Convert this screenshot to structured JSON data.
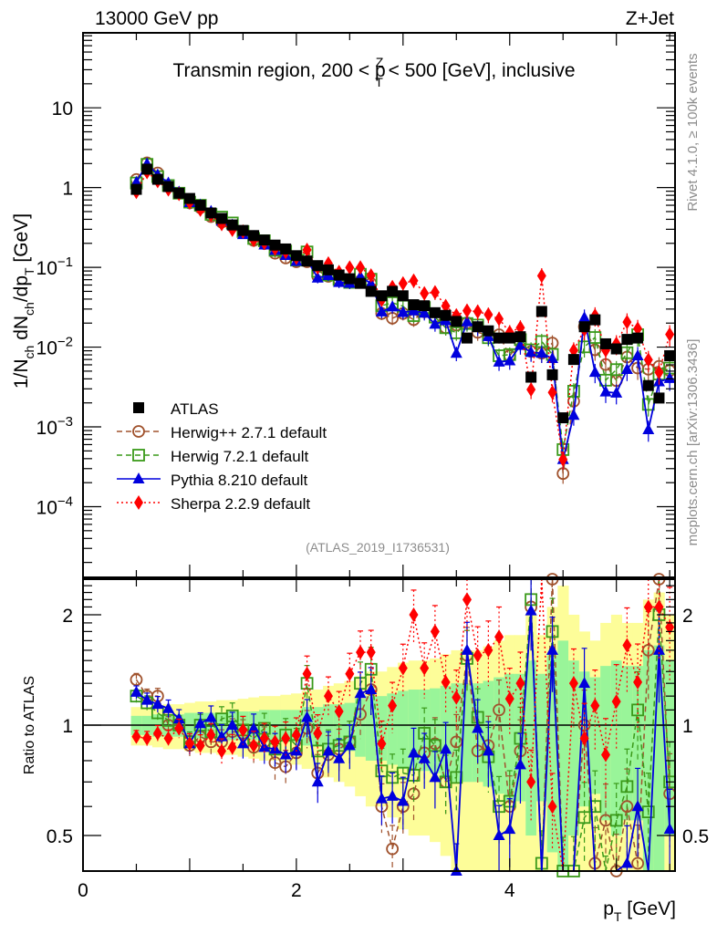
{
  "chart_data": [
    {
      "type": "scatter",
      "panel": "main",
      "header_left": "13000 GeV pp",
      "header_right": "Z+Jet",
      "title": "Transmin region, 200 < p_T^Z < 500 [GeV], inclusive",
      "title_parts": {
        "pre": "Transmin region, 200 < p",
        "sup": "Z",
        "sub": "T",
        "post": " < 500 [GeV], inclusive"
      },
      "ylabel": "1/N_ch dN_ch/dp_T [GeV]",
      "ylabel_parts": {
        "a": "1/N",
        "a_sub": "ch",
        "b": " dN",
        "b_sub": "ch",
        "c": "/dp",
        "c_sub": "T",
        "d": " [GeV]"
      },
      "yscale": "log",
      "ylim": [
        1.3e-05,
        87
      ],
      "xlim": [
        0,
        5.55
      ],
      "yticks": [
        {
          "value": 10,
          "label": "10"
        },
        {
          "value": 1,
          "label": "1"
        },
        {
          "value": 0.1,
          "label": "10",
          "exp": "−1"
        },
        {
          "value": 0.01,
          "label": "10",
          "exp": "−2"
        },
        {
          "value": 0.001,
          "label": "10",
          "exp": "−3"
        },
        {
          "value": 0.0001,
          "label": "10",
          "exp": "−4"
        }
      ],
      "legend_position": "lower-left",
      "x": [
        0.5,
        0.6,
        0.7,
        0.8,
        0.9,
        1.0,
        1.1,
        1.2,
        1.3,
        1.4,
        1.5,
        1.6,
        1.7,
        1.8,
        1.9,
        2.0,
        2.1,
        2.2,
        2.3,
        2.4,
        2.5,
        2.6,
        2.7,
        2.8,
        2.9,
        3.0,
        3.1,
        3.2,
        3.3,
        3.4,
        3.5,
        3.6,
        3.7,
        3.8,
        3.9,
        4.0,
        4.1,
        4.2,
        4.3,
        4.4,
        4.5,
        4.6,
        4.7,
        4.8,
        4.9,
        5.0,
        5.1,
        5.2,
        5.3,
        5.4,
        5.5
      ],
      "series": [
        {
          "name": "ATLAS",
          "label": "ATLAS",
          "color": "#000000",
          "marker": "square-filled",
          "line": "none",
          "values": [
            0.95,
            1.7,
            1.27,
            1.03,
            0.85,
            0.73,
            0.6,
            0.48,
            0.41,
            0.34,
            0.29,
            0.25,
            0.22,
            0.19,
            0.17,
            0.14,
            0.12,
            0.105,
            0.093,
            0.08,
            0.072,
            0.063,
            0.05,
            0.044,
            0.05,
            0.044,
            0.034,
            0.033,
            0.027,
            0.025,
            0.021,
            0.013,
            0.018,
            0.016,
            0.013,
            0.013,
            0.0135,
            0.0042,
            0.028,
            0.0045,
            0.0013,
            0.007,
            0.018,
            0.022,
            0.011,
            0.0095,
            0.0125,
            0.013,
            0.0033,
            0.0023,
            0.0078
          ]
        },
        {
          "name": "Herwig++ 2.7.1 default",
          "label": "Herwig++ 2.7.1 default",
          "color": "#a0522d",
          "marker": "circle-open",
          "line": "dashed",
          "ratio": [
            1.33,
            1.2,
            1.2,
            1.0,
            1.0,
            0.88,
            0.93,
            0.9,
            0.9,
            0.96,
            0.95,
            0.87,
            0.9,
            0.79,
            0.77,
            0.84,
            0.98,
            0.74,
            0.83,
            0.86,
            0.9,
            1.07,
            1.25,
            0.6,
            0.46,
            0.6,
            0.65,
            0.84,
            0.89,
            0.7,
            0.9,
            1.55,
            0.85,
            0.88,
            1.1,
            0.6,
            0.85,
            2.1,
            0.3,
            2.5,
            0.2,
            0.3,
            1.0,
            0.42,
            0.55,
            0.4,
            0.6,
            0.42,
            1.6,
            2.5,
            0.65
          ]
        },
        {
          "name": "Herwig 7.2.1 default",
          "label": "Herwig 7.2.1 default",
          "color": "#3a9a1a",
          "marker": "square-open",
          "line": "dashed",
          "ratio": [
            1.2,
            1.15,
            1.08,
            1.03,
            1.0,
            0.9,
            1.0,
            0.96,
            1.04,
            1.06,
            0.97,
            0.92,
            0.98,
            0.86,
            0.94,
            0.88,
            1.3,
            0.85,
            0.86,
            0.88,
            0.9,
            1.3,
            1.42,
            0.75,
            0.72,
            0.74,
            0.73,
            0.95,
            0.88,
            0.7,
            0.72,
            1.52,
            1.05,
            0.82,
            0.6,
            0.62,
            0.92,
            2.2,
            0.42,
            1.8,
            0.4,
            0.4,
            0.56,
            0.6,
            0.35,
            0.55,
            0.68,
            1.1,
            0.58,
            2.0,
            0.7
          ]
        },
        {
          "name": "Pythia 8.210 default",
          "label": "Pythia 8.210 default",
          "color": "#0000dd",
          "marker": "triangle-filled",
          "line": "solid",
          "ratio": [
            1.23,
            1.17,
            1.14,
            1.11,
            1.04,
            0.89,
            1.01,
            1.05,
            0.93,
            1.0,
            0.89,
            0.98,
            0.87,
            0.86,
            0.83,
            0.85,
            1.05,
            0.7,
            0.85,
            0.81,
            0.88,
            1.22,
            1.25,
            0.63,
            0.64,
            0.62,
            0.84,
            0.81,
            0.72,
            0.86,
            0.4,
            1.6,
            0.98,
            0.85,
            0.5,
            0.52,
            0.78,
            2.05,
            0.3,
            1.6,
            0.3,
            0.2,
            1.3,
            0.22,
            0.25,
            0.28,
            0.42,
            0.6,
            0.28,
            1.6,
            0.52
          ]
        },
        {
          "name": "Sherpa 2.2.9 default",
          "label": "Sherpa 2.2.9 default",
          "color": "#ff0000",
          "marker": "diamond-filled",
          "line": "dotted",
          "ratio": [
            0.93,
            0.92,
            0.95,
            0.92,
            0.98,
            0.89,
            0.88,
            0.94,
            0.85,
            0.87,
            0.97,
            0.88,
            0.92,
            0.9,
            0.92,
            0.94,
            1.38,
            0.95,
            1.2,
            1.09,
            1.38,
            1.58,
            1.58,
            0.89,
            1.13,
            1.43,
            2.0,
            1.43,
            1.8,
            1.31,
            1.19,
            2.2,
            1.55,
            1.6,
            1.74,
            1.18,
            1.3,
            0.7,
            2.8,
            0.6,
            0.3,
            1.3,
            0.92,
            1.13,
            0.83,
            1.16,
            1.65,
            1.31,
            2.1,
            2.1,
            1.85
          ]
        }
      ]
    },
    {
      "type": "scatter",
      "panel": "ratio",
      "ylabel": "Ratio to ATLAS",
      "xlabel": "p_T [GeV]",
      "xlabel_parts": {
        "a": "p",
        "sub": "T",
        "b": " [GeV]"
      },
      "yscale": "log",
      "ylim": [
        0.4,
        2.5
      ],
      "xlim": [
        0,
        5.55
      ],
      "xticks": [
        {
          "value": 0,
          "label": "0"
        },
        {
          "value": 2,
          "label": "2"
        },
        {
          "value": 4,
          "label": "4"
        }
      ],
      "yticks": [
        {
          "value": 0.5,
          "label": "0.5"
        },
        {
          "value": 1,
          "label": "1"
        },
        {
          "value": 2,
          "label": "2"
        }
      ],
      "reference_line": 1,
      "band_1sigma_color": "#99f599",
      "band_2sigma_color": "#fdfd99",
      "band_1sigma_rel": [
        0.06,
        0.06,
        0.07,
        0.07,
        0.07,
        0.08,
        0.08,
        0.08,
        0.08,
        0.09,
        0.09,
        0.09,
        0.1,
        0.1,
        0.1,
        0.1,
        0.12,
        0.12,
        0.14,
        0.14,
        0.15,
        0.18,
        0.2,
        0.2,
        0.22,
        0.24,
        0.25,
        0.25,
        0.26,
        0.28,
        0.3,
        0.3,
        0.3,
        0.32,
        0.35,
        0.38,
        0.38,
        0.5,
        0.38,
        0.55,
        0.7,
        0.5,
        0.4,
        0.35,
        0.45,
        0.5,
        0.45,
        0.45,
        0.6,
        0.65,
        0.5
      ],
      "band_2sigma_rel": [
        0.12,
        0.12,
        0.13,
        0.14,
        0.14,
        0.15,
        0.16,
        0.16,
        0.17,
        0.17,
        0.18,
        0.19,
        0.2,
        0.2,
        0.21,
        0.22,
        0.24,
        0.25,
        0.28,
        0.3,
        0.32,
        0.36,
        0.4,
        0.4,
        0.44,
        0.48,
        0.5,
        0.5,
        0.52,
        0.56,
        0.6,
        0.6,
        0.6,
        0.64,
        0.7,
        0.76,
        0.76,
        1.0,
        0.76,
        1.1,
        1.4,
        1.0,
        0.8,
        0.7,
        0.9,
        1.0,
        0.9,
        0.9,
        1.2,
        1.3,
        1.0
      ]
    }
  ],
  "watermarks": {
    "analysis": "(ATLAS_2019_I1736531)",
    "rivet": "Rivet 4.1.0, ≥ 100k events",
    "mcplots": "mcplots.cern.ch [arXiv:1306.3436]"
  }
}
